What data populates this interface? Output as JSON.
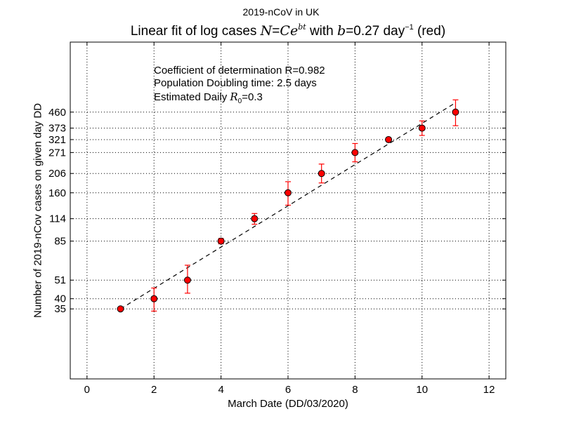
{
  "suptitle": "2019-nCoV in UK",
  "title": {
    "pre": "Linear fit of log cases ",
    "formula_lhs": "N",
    "formula_eq": "=",
    "formula_C": "Ce",
    "formula_exp": "bt",
    "mid": " with ",
    "b_sym": "b",
    "b_val": "=0.27",
    "unit": " day",
    "unit_exp": "−1",
    "post": " (red)"
  },
  "annotations": {
    "line1": "Coefficient of determination R=0.982",
    "line2": "Population Doubling time: 2.5 days",
    "line3_pre": "Estimated Daily ",
    "line3_sym": "R",
    "line3_sub": "0",
    "line3_val": "=0.3"
  },
  "chart_data": {
    "type": "scatter",
    "title": "Linear fit of log cases N=Ce^bt with b=0.27 day^-1 (red)",
    "xlabel": "March Date (DD/03/2020)",
    "ylabel": "Number of 2019-nCov cases on given day DD",
    "xlim": [
      -0.5,
      12.5
    ],
    "x_ticks": [
      0,
      2,
      4,
      6,
      8,
      10,
      12
    ],
    "y_scale": "log",
    "ylim": [
      14,
      1150
    ],
    "y_ticks": [
      35,
      40,
      51,
      85,
      114,
      160,
      206,
      271,
      321,
      373,
      460
    ],
    "grid": true,
    "series": [
      {
        "x": [
          1,
          2,
          3,
          4,
          5,
          6,
          7,
          8,
          9,
          10,
          11
        ],
        "y": [
          35,
          40,
          51,
          85,
          114,
          160,
          206,
          271,
          321,
          373,
          460
        ],
        "y_err_low": [
          35,
          34,
          43,
          82,
          106,
          136,
          182,
          240,
          315,
          339,
          385
        ],
        "y_err_high": [
          35,
          46,
          62,
          88,
          122,
          185,
          233,
          305,
          327,
          410,
          540
        ],
        "color": "#ff0000",
        "marker": "circle"
      },
      {
        "type": "line",
        "style": "dashed",
        "color": "#000000",
        "x": [
          1,
          11
        ],
        "y": [
          35,
          520
        ]
      }
    ]
  }
}
